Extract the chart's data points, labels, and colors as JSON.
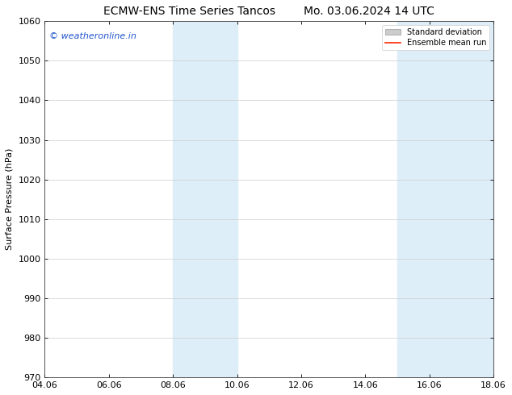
{
  "title": "ECMW-ENS Time Series Tancos        Mo. 03.06.2024 14 UTC",
  "ylabel": "Surface Pressure (hPa)",
  "ylim": [
    970,
    1060
  ],
  "yticks": [
    970,
    980,
    990,
    1000,
    1010,
    1020,
    1030,
    1040,
    1050,
    1060
  ],
  "xtick_labels": [
    "04.06",
    "06.06",
    "08.06",
    "10.06",
    "12.06",
    "14.06",
    "16.06",
    "18.06"
  ],
  "xtick_positions": [
    0,
    2,
    4,
    6,
    8,
    10,
    12,
    14
  ],
  "xlim": [
    0,
    14
  ],
  "shaded_regions": [
    {
      "x_start": 4,
      "x_end": 6,
      "color": "#ddeef8"
    },
    {
      "x_start": 11,
      "x_end": 14,
      "color": "#ddeef8"
    }
  ],
  "watermark_text": "© weatheronline.in",
  "watermark_color": "#2255cc",
  "watermark_fontsize": 8,
  "legend_std_label": "Standard deviation",
  "legend_mean_label": "Ensemble mean run",
  "legend_std_color": "#cccccc",
  "legend_std_edge": "#999999",
  "legend_mean_color": "#ff2200",
  "background_color": "#ffffff",
  "grid_color": "#cccccc",
  "title_fontsize": 10,
  "axis_label_fontsize": 8,
  "tick_fontsize": 8,
  "legend_fontsize": 7
}
